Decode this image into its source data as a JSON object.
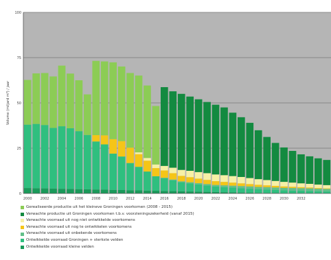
{
  "chart_data": {
    "type": "bar",
    "stacked": true,
    "title": "",
    "xlabel": "",
    "ylabel": "Volume (miljard m³) / jaar",
    "ylim": [
      0,
      100
    ],
    "yticks": [
      0,
      25,
      50,
      75,
      100
    ],
    "grid": true,
    "legend_position": "bottom",
    "x": [
      2000,
      2001,
      2002,
      2003,
      2004,
      2005,
      2006,
      2007,
      2008,
      2009,
      2010,
      2011,
      2012,
      2013,
      2014,
      2015,
      2016,
      2017,
      2018,
      2019,
      2020,
      2021,
      2022,
      2023,
      2024,
      2025,
      2026,
      2027,
      2028,
      2029,
      2030,
      2031,
      2032,
      2033,
      2034,
      2035
    ],
    "xtick_labels": [
      "2000",
      "2002",
      "2004",
      "2006",
      "2008",
      "2010",
      "2012",
      "2014",
      "2016",
      "2018",
      "2020",
      "2022",
      "2024",
      "2026",
      "2028",
      "2030",
      "2032"
    ],
    "series": [
      {
        "name": "Ontwikkelde voorraad kleine velden",
        "color": "#1a9a5a",
        "values": [
          3.0,
          2.9,
          2.8,
          2.7,
          2.6,
          2.5,
          2.4,
          2.3,
          2.2,
          2.1,
          2.0,
          1.9,
          1.8,
          1.7,
          1.6,
          1.5,
          1.4,
          1.3,
          1.2,
          1.1,
          1.0,
          0.9,
          0.8,
          0.7,
          0.6,
          0.5,
          0.4,
          0.3,
          0.3,
          0.3,
          0.2,
          0.2,
          0.2,
          0.2,
          0.1,
          0.1
        ]
      },
      {
        "name": "Ontwikkelde voorraad Groningen + sterkste velden",
        "color": "#2fbf7f",
        "values": [
          35.0,
          35.5,
          35.0,
          33.5,
          34.5,
          33.5,
          32.0,
          30.0,
          26.5,
          25.0,
          20.0,
          18.5,
          15.0,
          13.0,
          10.5,
          8.0,
          7.0,
          6.0,
          5.0,
          4.5,
          4.0,
          3.5,
          3.0,
          2.8,
          2.6,
          2.4,
          2.2,
          2.0,
          1.8,
          1.6,
          1.5,
          1.4,
          1.3,
          1.2,
          1.1,
          1.0
        ]
      },
      {
        "name": "Verwachte voorraad uit onbekende voorkomens",
        "color": "#62c08a",
        "values": [
          0,
          0,
          0,
          0,
          0,
          0,
          0,
          0,
          0,
          0,
          0,
          0,
          0,
          0,
          0,
          0,
          0.3,
          0.4,
          0.5,
          0.6,
          0.7,
          0.8,
          0.9,
          1.0,
          1.1,
          1.2,
          1.3,
          1.3,
          1.4,
          1.4,
          1.4,
          1.4,
          1.4,
          1.4,
          1.4,
          1.4
        ]
      },
      {
        "name": "Verwachte voorraad uit nog te ontwikkelen voorkomens",
        "color": "#f5c518",
        "values": [
          0,
          0,
          0,
          0,
          0,
          0,
          0,
          0,
          3.5,
          5.0,
          8.0,
          8.5,
          8.5,
          7.0,
          6.0,
          4.5,
          4.0,
          3.5,
          3.0,
          2.8,
          2.5,
          2.3,
          2.1,
          1.9,
          1.7,
          1.5,
          1.3,
          1.2,
          1.0,
          0.9,
          0.8,
          0.7,
          0.6,
          0.5,
          0.4,
          0.3
        ]
      },
      {
        "name": "Verwachte voorraad uit nog niet ontwikkelde voorkomens",
        "color": "#f6f0a6",
        "values": [
          0,
          0,
          0,
          0,
          0,
          0,
          0,
          0,
          0,
          0,
          0,
          0,
          0,
          1.0,
          1.5,
          2.0,
          2.5,
          3.0,
          3.3,
          3.5,
          3.6,
          3.7,
          3.7,
          3.7,
          3.6,
          3.5,
          3.3,
          3.1,
          2.9,
          2.7,
          2.5,
          2.3,
          2.1,
          2.0,
          1.9,
          1.8
        ]
      },
      {
        "name": "Verwachte productie uit Groningen voorkomen t.b.v. voorzieningszekerheid (vanaf 2015)",
        "color": "#138a40",
        "values": [
          0,
          0,
          0,
          0,
          0,
          0,
          0,
          0,
          0,
          0,
          0,
          0,
          0,
          0,
          0,
          0,
          43.5,
          42.2,
          42.0,
          41.0,
          40.2,
          39.3,
          38.5,
          37.4,
          35.0,
          33.0,
          30.5,
          27.0,
          23.8,
          21.0,
          19.0,
          17.5,
          16.0,
          15.2,
          14.5,
          13.9
        ]
      },
      {
        "name": "Gerealiseerde productie uit het kleineve Groningen voorkomen (2008 - 2015)",
        "color": "#8ccc55",
        "values": [
          24.7,
          27.9,
          28.7,
          28.4,
          33.5,
          30.2,
          28.1,
          22.4,
          41.0,
          40.8,
          42.4,
          41.2,
          41.2,
          42.4,
          40.0,
          32.3,
          0,
          0,
          0,
          0,
          0,
          0,
          0,
          0,
          0,
          0,
          0,
          0,
          0,
          0,
          0,
          0,
          0,
          0,
          0,
          0
        ]
      }
    ]
  },
  "legend": [
    {
      "label": "Gerealiseerde productie uit het kleineve Groningen voorkomen (2008 - 2015)",
      "color": "#8ccc55"
    },
    {
      "label": "Verwachte productie uit Groningen voorkomen t.b.v. voorzieningszekerheid (vanaf 2015)",
      "color": "#138a40"
    },
    {
      "label": "Verwachte voorraad uit nog niet ontwikkelde voorkomens",
      "color": "#f6f0a6"
    },
    {
      "label": "Verwachte voorraad uit nog te ontwikkelen voorkomens",
      "color": "#f5c518"
    },
    {
      "label": "Verwachte voorraad uit onbekende voorkomens",
      "color": "#62c08a"
    },
    {
      "label": "Ontwikkelde voorraad Groningen + sterkste velden",
      "color": "#2fbf7f"
    },
    {
      "label": "Ontwikkelde voorraad kleine velden",
      "color": "#1a9a5a"
    }
  ],
  "colors": {
    "plot_background": "#b5b5b5",
    "grid_line": "#7a7a7a",
    "axis_line": "#555555"
  }
}
